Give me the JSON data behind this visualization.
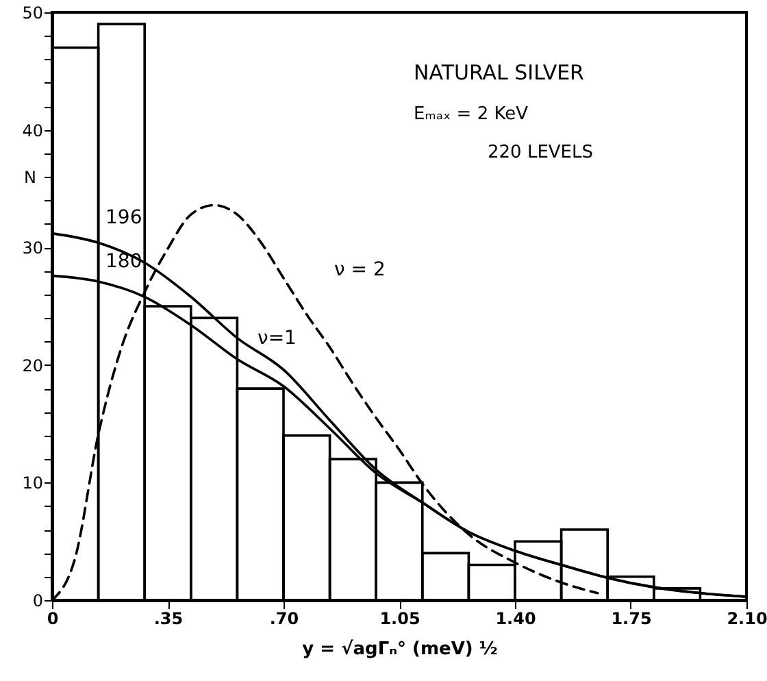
{
  "chart_data": {
    "type": "histogram",
    "title": "NATURAL SILVER",
    "subtitle": "Eₘₐₓ = 2 KeV",
    "annotations": [
      "220 LEVELS",
      "196",
      "180",
      "ν=1",
      "ν = 2"
    ],
    "xlabel": "y = √agΓₙ°   (meV) ½",
    "ylabel": "N",
    "bins": [
      0,
      0.14,
      0.28,
      0.42,
      0.56,
      0.7,
      0.84,
      0.98,
      1.12,
      1.26,
      1.4,
      1.54,
      1.68,
      1.82,
      1.96
    ],
    "values": [
      47,
      49,
      25,
      24,
      18,
      14,
      12,
      10,
      4,
      3,
      5,
      6,
      2,
      1
    ],
    "color": "#000000",
    "series": [
      {
        "type": "line",
        "color": "#000000",
        "line_style": "solid",
        "x": [
          0,
          0.14,
          0.28,
          0.42,
          0.56,
          0.7,
          0.84,
          0.98,
          1.12,
          1.26,
          1.4,
          1.54,
          1.68,
          1.82,
          1.96,
          2.1
        ],
        "values": [
          31.2,
          30.4,
          28.7,
          25.8,
          22.3,
          19.6,
          15.3,
          11.1,
          8.3,
          5.8,
          4.2,
          3.0,
          1.9,
          1.1,
          0.6,
          0.3
        ]
      },
      {
        "type": "line",
        "color": "#000000",
        "line_style": "solid",
        "x": [
          0,
          0.14,
          0.28,
          0.42,
          0.56,
          0.7,
          0.84,
          0.98,
          1.12,
          1.26,
          1.4,
          1.54,
          1.68,
          1.82,
          1.96,
          2.1
        ],
        "values": [
          27.6,
          27.1,
          25.8,
          23.4,
          20.5,
          18.2,
          14.6,
          10.8,
          8.3,
          5.8,
          4.2,
          3.0,
          1.9,
          1.1,
          0.6,
          0.3
        ]
      },
      {
        "type": "line",
        "color": "#000000",
        "line_style": "dashed",
        "x": [
          0,
          0.07,
          0.14,
          0.21,
          0.28,
          0.35,
          0.42,
          0.49,
          0.56,
          0.63,
          0.7,
          0.77,
          0.84,
          0.91,
          0.98,
          1.05,
          1.12,
          1.26,
          1.4,
          1.54,
          1.65
        ],
        "values": [
          0,
          3.6,
          14.1,
          21.5,
          26.2,
          29.9,
          32.8,
          33.6,
          32.8,
          30.5,
          27.4,
          24.3,
          21.5,
          18.4,
          15.5,
          12.8,
          9.9,
          5.6,
          3.2,
          1.5,
          0.6
        ]
      }
    ],
    "xlim": [
      0,
      2.1
    ],
    "xticks": [
      0,
      {
        "value": 0.35,
        "label": ".35"
      },
      {
        "value": 0.7,
        "label": ".70"
      },
      {
        "value": 1.05,
        "label": "1.05"
      },
      {
        "value": 1.4,
        "label": "1.40"
      },
      {
        "value": 1.75,
        "label": "1.75"
      },
      {
        "value": 2.1,
        "label": "2.10"
      }
    ],
    "ylim": [
      0,
      50
    ],
    "yticks": [
      0,
      {
        "value": 2,
        "label": null
      },
      {
        "value": 4,
        "label": null
      },
      {
        "value": 6,
        "label": null
      },
      {
        "value": 8,
        "label": null
      },
      10,
      {
        "value": 12,
        "label": null
      },
      {
        "value": 14,
        "label": null
      },
      {
        "value": 16,
        "label": null
      },
      {
        "value": 18,
        "label": null
      },
      20,
      {
        "value": 22,
        "label": null
      },
      {
        "value": 24,
        "label": null
      },
      {
        "value": 26,
        "label": null
      },
      {
        "value": 28,
        "label": null
      },
      30,
      {
        "value": 32,
        "label": null
      },
      {
        "value": 34,
        "label": null
      },
      {
        "value": 36,
        "label": null
      },
      {
        "value": 38,
        "label": null
      },
      40,
      {
        "value": 42,
        "label": null
      },
      {
        "value": 44,
        "label": null
      },
      {
        "value": 46,
        "label": null
      },
      {
        "value": 48,
        "label": null
      },
      50
    ],
    "grid": false
  }
}
